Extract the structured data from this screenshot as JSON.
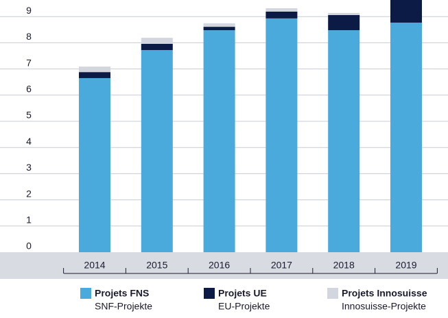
{
  "chart_data": {
    "type": "stacked_bar",
    "categories": [
      "2014",
      "2015",
      "2016",
      "2017",
      "2018",
      "2019"
    ],
    "series": [
      {
        "name": "Projets FNS",
        "subtitle": "SNF-Projekte",
        "color": "#4aaadc",
        "values": [
          6.65,
          7.72,
          8.48,
          8.93,
          8.48,
          8.77
        ]
      },
      {
        "name": "Projets UE",
        "subtitle": "EU-Projekte",
        "color": "#0c1a46",
        "values": [
          0.23,
          0.24,
          0.13,
          0.26,
          0.58,
          1.0
        ]
      },
      {
        "name": "Projets Innosuisse",
        "subtitle": "Innosuisse-Projekte",
        "color": "#d3d6df",
        "values": [
          0.21,
          0.23,
          0.13,
          0.13,
          0.08,
          0
        ]
      }
    ],
    "ylim": [
      0,
      9.63
    ],
    "yticks": [
      0,
      1,
      2,
      3,
      4,
      5,
      6,
      7,
      8,
      9
    ],
    "grid": true
  }
}
